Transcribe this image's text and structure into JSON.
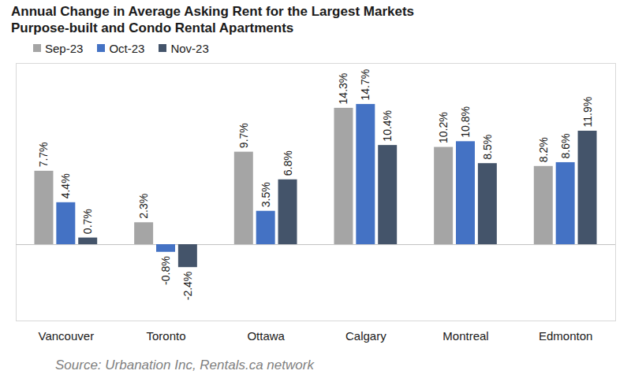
{
  "chart_data": {
    "type": "bar",
    "title": "Annual Change in Average Asking Rent for the Largest Markets",
    "subtitle": "Purpose-built and Condo Rental Apartments",
    "source": "Source: Urbanation Inc, Rentals.ca network",
    "categories": [
      "Vancouver",
      "Toronto",
      "Ottawa",
      "Calgary",
      "Montreal",
      "Edmonton"
    ],
    "series": [
      {
        "name": "Sep-23",
        "color": "#a5a5a5",
        "values": [
          7.7,
          2.3,
          9.7,
          14.3,
          10.2,
          8.2
        ],
        "value_labels": [
          "7.7%",
          "2.3%",
          "9.7%",
          "14.3%",
          "10.2%",
          "8.2%"
        ]
      },
      {
        "name": "Oct-23",
        "color": "#4472c4",
        "values": [
          4.4,
          -0.8,
          3.5,
          14.7,
          10.8,
          8.6
        ],
        "value_labels": [
          "4.4%",
          "-0.8%",
          "3.5%",
          "14.7%",
          "10.8%",
          "8.6%"
        ]
      },
      {
        "name": "Nov-23",
        "color": "#44546a",
        "values": [
          0.7,
          -2.4,
          6.8,
          10.4,
          8.5,
          11.9
        ],
        "value_labels": [
          "0.7%",
          "-2.4%",
          "6.8%",
          "10.4%",
          "8.5%",
          "11.9%"
        ]
      }
    ],
    "ylim": [
      -8,
      19
    ],
    "yticks": [
      0
    ],
    "grid": true,
    "data_labels": true,
    "tick_labels": "x",
    "legend": "top-left"
  }
}
